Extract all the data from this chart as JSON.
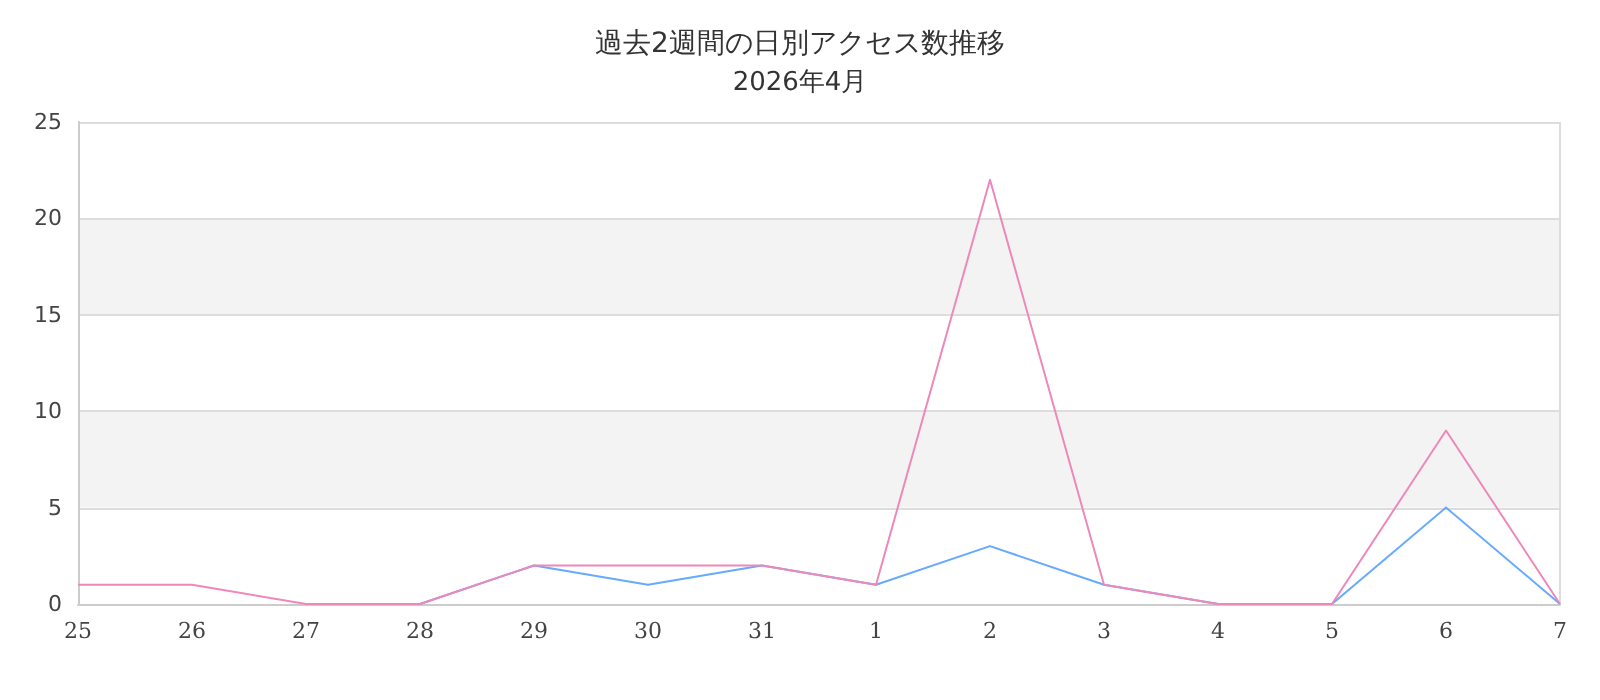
{
  "chart_data": {
    "type": "line",
    "title": "過去2週間の日別アクセス数推移",
    "subtitle": "2026年4月",
    "categories": [
      "25",
      "26",
      "27",
      "28",
      "29",
      "30",
      "31",
      "1",
      "2",
      "3",
      "4",
      "5",
      "6",
      "7"
    ],
    "series": [
      {
        "color": "#66aaff",
        "values": [
          null,
          null,
          null,
          0,
          2,
          1,
          2,
          1,
          3,
          1,
          0,
          0,
          5,
          0
        ]
      },
      {
        "color": "#ee88bb",
        "values": [
          1,
          1,
          0,
          0,
          2,
          2,
          2,
          1,
          22,
          1,
          0,
          0,
          9,
          0
        ]
      }
    ],
    "ylim": [
      0,
      25
    ],
    "yticks": [
      0,
      5,
      10,
      15,
      20,
      25
    ],
    "grid": "y",
    "marker": "none",
    "line_style": "solid"
  }
}
